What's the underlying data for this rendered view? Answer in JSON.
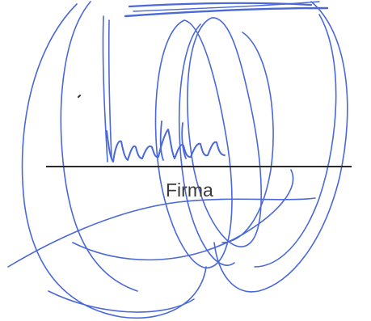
{
  "signature": {
    "caption": "Firma",
    "ink_color": "#4a68d8",
    "rule_color": "#2a2a2a",
    "caption_color": "#3a3a3a",
    "background_color": "#ffffff"
  }
}
